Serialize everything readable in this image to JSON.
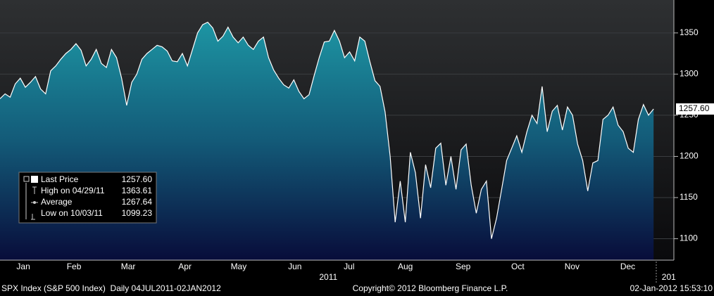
{
  "chart_data": {
    "type": "area",
    "values": [
      1270,
      1276,
      1272,
      1288,
      1295,
      1284,
      1290,
      1297,
      1282,
      1276,
      1304,
      1310,
      1318,
      1325,
      1330,
      1337,
      1329,
      1310,
      1318,
      1330,
      1313,
      1308,
      1330,
      1320,
      1295,
      1262,
      1290,
      1300,
      1318,
      1325,
      1330,
      1335,
      1333,
      1328,
      1316,
      1315,
      1325,
      1310,
      1330,
      1350,
      1360,
      1363,
      1356,
      1340,
      1346,
      1357,
      1345,
      1338,
      1345,
      1335,
      1330,
      1340,
      1345,
      1320,
      1305,
      1295,
      1287,
      1283,
      1293,
      1279,
      1270,
      1275,
      1298,
      1320,
      1339,
      1340,
      1353,
      1340,
      1320,
      1327,
      1316,
      1345,
      1340,
      1315,
      1292,
      1285,
      1254,
      1200,
      1120,
      1170,
      1120,
      1205,
      1180,
      1125,
      1190,
      1162,
      1210,
      1216,
      1165,
      1200,
      1160,
      1208,
      1215,
      1165,
      1131,
      1160,
      1170,
      1100,
      1125,
      1160,
      1195,
      1210,
      1225,
      1205,
      1230,
      1250,
      1240,
      1285,
      1230,
      1255,
      1262,
      1232,
      1260,
      1250,
      1215,
      1195,
      1158,
      1192,
      1195,
      1245,
      1250,
      1260,
      1238,
      1230,
      1210,
      1205,
      1245,
      1263,
      1250,
      1257.6
    ],
    "color": "#ffffff",
    "xlim": [
      0,
      133
    ],
    "xticks": [
      {
        "value": 4.6,
        "label": "Jan"
      },
      {
        "value": 14.6,
        "label": "Feb"
      },
      {
        "value": 25.3,
        "label": "Mar"
      },
      {
        "value": 36.5,
        "label": "Apr"
      },
      {
        "value": 47.1,
        "label": "May"
      },
      {
        "value": 58.2,
        "label": "Jun"
      },
      {
        "value": 68.9,
        "label": "Jul"
      },
      {
        "value": 80,
        "label": "Aug"
      },
      {
        "value": 91.4,
        "label": "Sep"
      },
      {
        "value": 102.2,
        "label": "Oct"
      },
      {
        "value": 112.9,
        "label": "Nov"
      },
      {
        "value": 123.9,
        "label": "Dec"
      }
    ],
    "year_ticks": [
      {
        "value": 64.8,
        "label": "2011"
      },
      {
        "value": 132,
        "label": "201"
      }
    ],
    "ylim": [
      1074,
      1390
    ],
    "yticks": [
      1100,
      1150,
      1200,
      1250,
      1300,
      1350
    ],
    "grid": true,
    "legend": [
      {
        "name": "Last Price",
        "value": 1257.6,
        "value_label": "1257.60"
      },
      {
        "name": "High on 04/29/11",
        "value": 1363.61
      },
      {
        "name": "Average",
        "value": 1267.64
      },
      {
        "name": "Low on 10/03/11",
        "value": 1099.23
      }
    ],
    "footer": {
      "left": "SPX Index (S&P 500 Index)  Daily 04JUL2011-02JAN2012",
      "center": "Copyright© 2012 Bloomberg Finance L.P.",
      "right": "02-Jan-2012 15:53:10"
    }
  }
}
